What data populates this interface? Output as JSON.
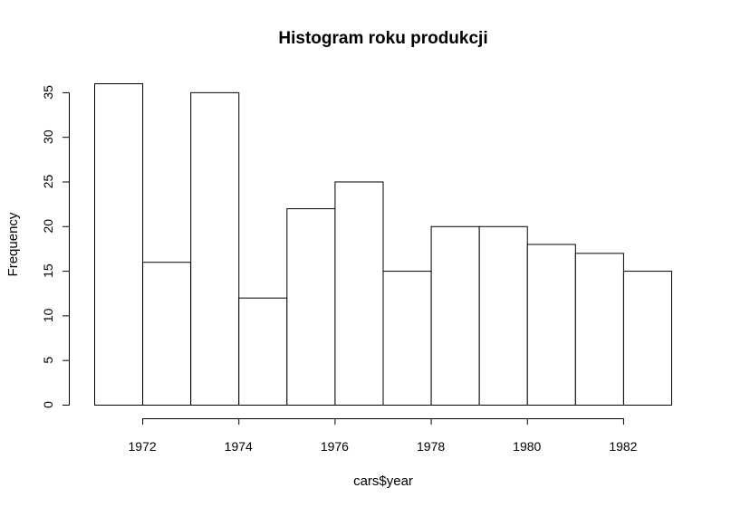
{
  "chart_data": {
    "type": "bar",
    "title": "Histogram roku produkcji",
    "xlabel": "cars$year",
    "ylabel": "Frequency",
    "bins": [
      {
        "x0": 1971,
        "x1": 1972,
        "value": 36
      },
      {
        "x0": 1972,
        "x1": 1973,
        "value": 16
      },
      {
        "x0": 1973,
        "x1": 1974,
        "value": 35
      },
      {
        "x0": 1974,
        "x1": 1975,
        "value": 12
      },
      {
        "x0": 1975,
        "x1": 1976,
        "value": 22
      },
      {
        "x0": 1976,
        "x1": 1977,
        "value": 25
      },
      {
        "x0": 1977,
        "x1": 1978,
        "value": 15
      },
      {
        "x0": 1978,
        "x1": 1979,
        "value": 20
      },
      {
        "x0": 1979,
        "x1": 1980,
        "value": 20
      },
      {
        "x0": 1980,
        "x1": 1981,
        "value": 18
      },
      {
        "x0": 1981,
        "x1": 1982,
        "value": 17
      },
      {
        "x0": 1982,
        "x1": 1983,
        "value": 15
      }
    ],
    "xlim": [
      1971,
      1983
    ],
    "ylim": [
      0,
      36
    ],
    "x_ticks": [
      1972,
      1974,
      1976,
      1978,
      1980,
      1982
    ],
    "y_ticks": [
      0,
      5,
      10,
      15,
      20,
      25,
      30,
      35
    ],
    "grid": false,
    "bar_fill": "#ffffff",
    "bar_stroke": "#000000"
  }
}
